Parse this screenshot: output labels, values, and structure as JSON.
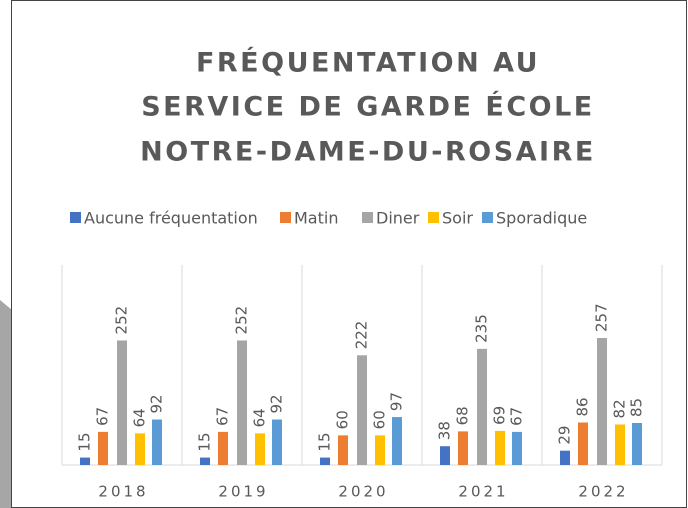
{
  "chart_data": {
    "type": "bar",
    "title": [
      "FRÉQUENTATION AU",
      "SERVICE DE GARDE ÉCOLE",
      "NOTRE-DAME-DU-ROSAIRE"
    ],
    "categories": [
      "2018",
      "2019",
      "2020",
      "2021",
      "2022"
    ],
    "series": [
      {
        "name": "Aucune fréquentation",
        "color": "#4472c4",
        "values": [
          15,
          15,
          15,
          38,
          29
        ]
      },
      {
        "name": "Matin",
        "color": "#ed7d31",
        "values": [
          67,
          67,
          60,
          68,
          86
        ]
      },
      {
        "name": "Diner",
        "color": "#a5a5a5",
        "values": [
          252,
          252,
          222,
          235,
          257
        ]
      },
      {
        "name": "Soir",
        "color": "#ffc000",
        "values": [
          64,
          64,
          60,
          69,
          82
        ]
      },
      {
        "name": "Sporadique",
        "color": "#5b9bd5",
        "values": [
          92,
          92,
          97,
          67,
          85
        ]
      }
    ],
    "legend": "top"
  }
}
